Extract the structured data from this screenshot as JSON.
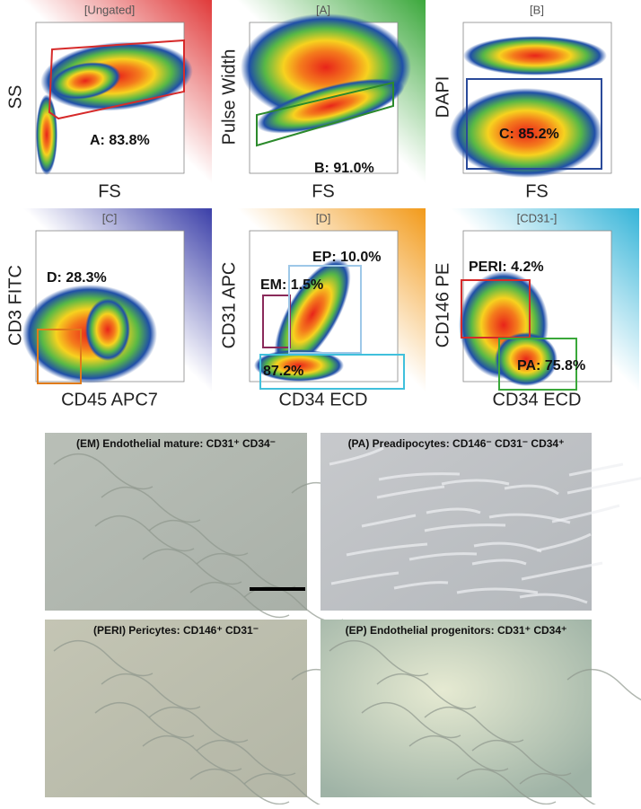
{
  "plots": [
    {
      "title": "[Ungated]",
      "y_label": "SS",
      "x_label": "FS",
      "gates": [
        "A: 83.8%"
      ]
    },
    {
      "title": "[A]",
      "y_label": "Pulse Width",
      "x_label": "FS",
      "gates": [
        "B: 91.0%"
      ]
    },
    {
      "title": "[B]",
      "y_label": "DAPI",
      "x_label": "FS",
      "gates": [
        "C: 85.2%"
      ]
    },
    {
      "title": "[C]",
      "y_label": "CD3 FITC",
      "x_label": "CD45 APC7",
      "gates": [
        "D: 28.3%"
      ]
    },
    {
      "title": "[D]",
      "y_label": "CD31 APC",
      "x_label": "CD34 ECD",
      "gates": [
        "EP: 10.0%",
        "EM: 1.5%",
        "87.2%"
      ]
    },
    {
      "title": "[CD31-]",
      "y_label": "CD146 PE",
      "x_label": "CD34 ECD",
      "gates": [
        "PERI: 4.2%",
        "PA: 75.8%"
      ]
    }
  ],
  "micrographs": [
    {
      "title": "(EM) Endothelial mature: CD31⁺ CD34⁻"
    },
    {
      "title": "(PA) Preadipocytes: CD146⁻ CD31⁻ CD34⁺"
    },
    {
      "title": "(PERI) Pericytes: CD146⁺ CD31⁻"
    },
    {
      "title": "(EP) Endothelial progenitors: CD31⁺ CD34⁺"
    }
  ]
}
